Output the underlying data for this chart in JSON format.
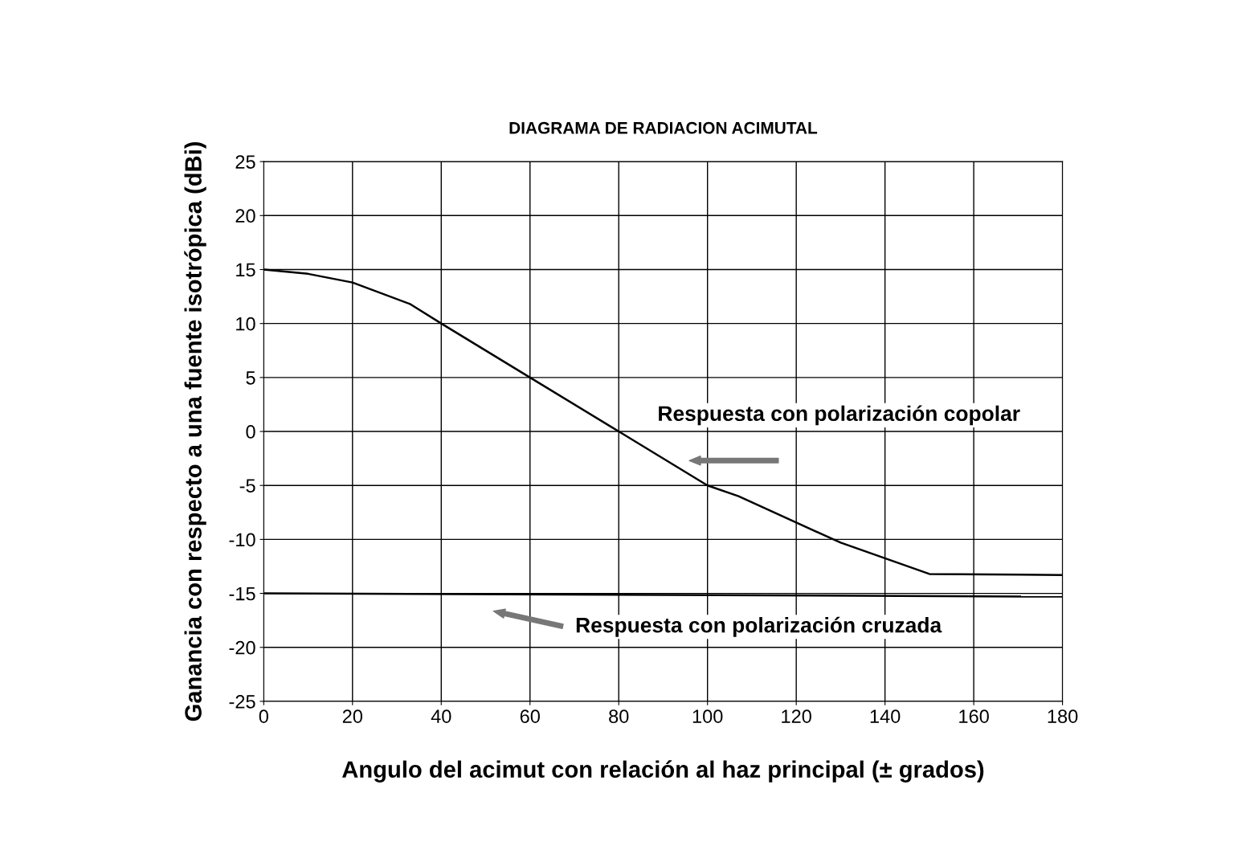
{
  "chart_data": {
    "type": "line",
    "title": "DIAGRAMA DE RADIACION ACIMUTAL",
    "xlabel": "Angulo del acimut con relación al haz principal (± grados)",
    "ylabel": "Ganancia con respecto a una fuente isotrópica (dBi)",
    "series": [
      {
        "color": "#000000",
        "x": [
          0,
          10,
          20,
          33,
          40,
          60,
          80,
          100,
          107,
          130,
          150,
          180
        ],
        "values": [
          15,
          14.6,
          13.8,
          11.8,
          10,
          5,
          0,
          -5,
          -6,
          -10.3,
          -13.2,
          -13.3
        ]
      },
      {
        "color": "#000000",
        "x": [
          0,
          180
        ],
        "values": [
          -15,
          -15.3
        ]
      }
    ],
    "annotations": [
      "Respuesta con polarización copolar",
      "Respuesta con polarización cruzada"
    ],
    "xlim": [
      0,
      180
    ],
    "xticks": [
      0,
      20,
      40,
      60,
      80,
      100,
      120,
      140,
      160,
      180
    ],
    "ylim": [
      -25,
      25
    ],
    "yticks": [
      -25,
      -20,
      -15,
      -10,
      -5,
      0,
      5,
      10,
      15,
      20,
      25
    ],
    "grid": true,
    "legend": false,
    "marker": "none",
    "line_style": "solid"
  }
}
